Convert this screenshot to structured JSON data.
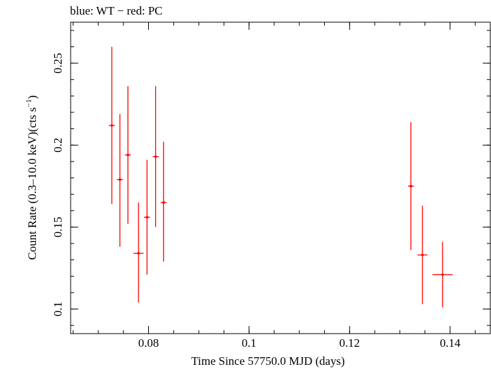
{
  "chart_data": {
    "type": "scatter",
    "title": "blue: WT − red: PC",
    "xlabel": "Time Since 57750.0 MJD (days)",
    "ylabel_main": "Count Rate (0.3–10.0 keV)(cts s",
    "ylabel_sup": "−1",
    "ylabel_end": ")",
    "xlim": [
      0.0645,
      0.148
    ],
    "ylim": [
      0.085,
      0.275
    ],
    "x_ticks": [
      {
        "value": 0.08,
        "label": "0.08"
      },
      {
        "value": 0.1,
        "label": "0.1"
      },
      {
        "value": 0.12,
        "label": "0.12"
      },
      {
        "value": 0.14,
        "label": "0.14"
      }
    ],
    "y_ticks": [
      {
        "value": 0.1,
        "label": "0.1"
      },
      {
        "value": 0.15,
        "label": "0.15"
      },
      {
        "value": 0.2,
        "label": "0.2"
      },
      {
        "value": 0.25,
        "label": "0.25"
      }
    ],
    "x_minor_step": 0.005,
    "y_minor_step": 0.01,
    "grid": false,
    "series": [
      {
        "color": "#ff0000",
        "points": [
          {
            "x": 0.0727,
            "xerr": 0.0006,
            "y": 0.212,
            "ylo": 0.164,
            "yhi": 0.26
          },
          {
            "x": 0.0743,
            "xerr": 0.0006,
            "y": 0.179,
            "ylo": 0.138,
            "yhi": 0.219
          },
          {
            "x": 0.0759,
            "xerr": 0.0006,
            "y": 0.194,
            "ylo": 0.152,
            "yhi": 0.236
          },
          {
            "x": 0.078,
            "xerr": 0.001,
            "y": 0.134,
            "ylo": 0.104,
            "yhi": 0.165
          },
          {
            "x": 0.0797,
            "xerr": 0.0006,
            "y": 0.156,
            "ylo": 0.121,
            "yhi": 0.191
          },
          {
            "x": 0.0814,
            "xerr": 0.0006,
            "y": 0.193,
            "ylo": 0.15,
            "yhi": 0.236
          },
          {
            "x": 0.083,
            "xerr": 0.0006,
            "y": 0.165,
            "ylo": 0.129,
            "yhi": 0.202
          },
          {
            "x": 0.1322,
            "xerr": 0.0006,
            "y": 0.175,
            "ylo": 0.136,
            "yhi": 0.214
          },
          {
            "x": 0.1345,
            "xerr": 0.001,
            "y": 0.133,
            "ylo": 0.103,
            "yhi": 0.163
          },
          {
            "x": 0.1385,
            "xerr": 0.002,
            "y": 0.121,
            "ylo": 0.101,
            "yhi": 0.141
          }
        ]
      }
    ]
  }
}
